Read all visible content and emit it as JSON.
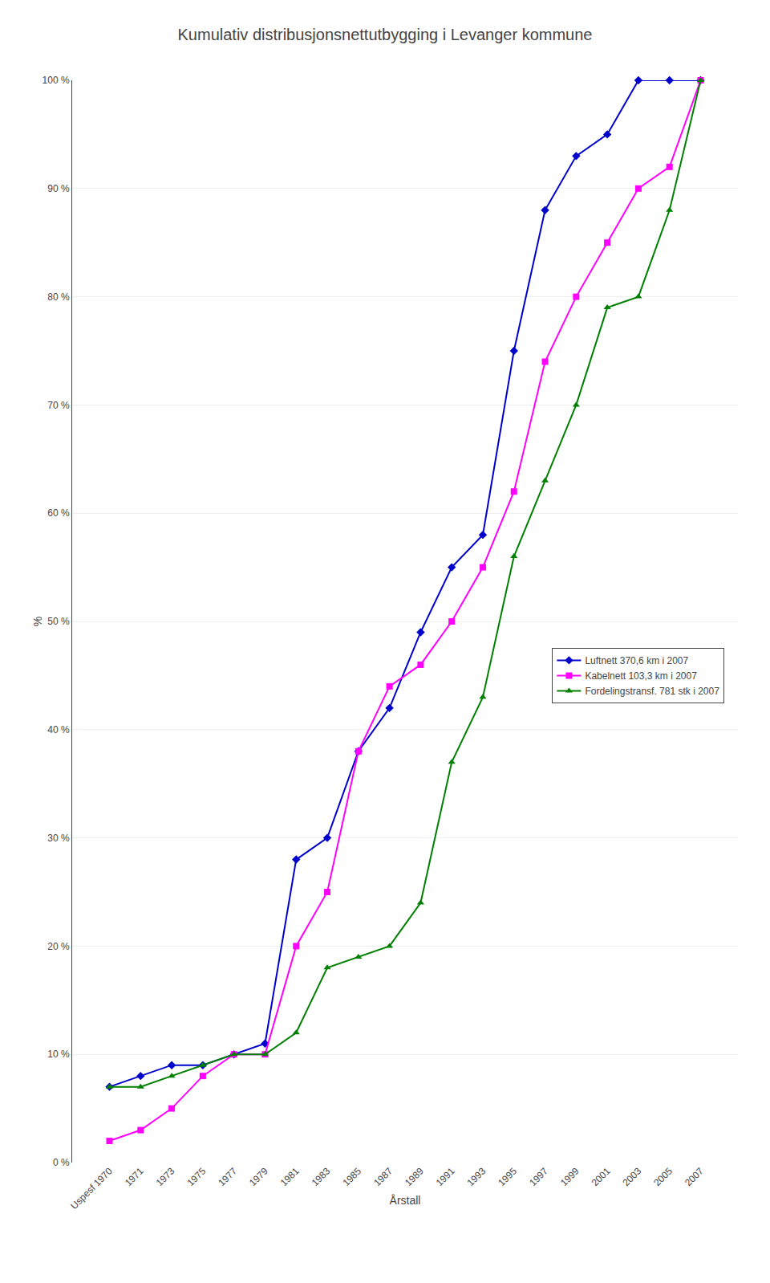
{
  "chart_data": {
    "type": "line",
    "title": "Kumulativ distribusjonsnettutbygging i Levanger kommune",
    "x_label": "Årstall",
    "y_label": "%",
    "categories": [
      "Uspesf 1970",
      "1971",
      "1973",
      "1975",
      "1977",
      "1979",
      "1981",
      "1983",
      "1985",
      "1987",
      "1989",
      "1991",
      "1993",
      "1995",
      "1997",
      "1999",
      "2001",
      "2003",
      "2005",
      "2007"
    ],
    "series": [
      {
        "name": "Luftnett 370,6 km i 2007",
        "color": "#0000cd",
        "marker": "diamond",
        "values": [
          7,
          8,
          9,
          9,
          10,
          11,
          28,
          30,
          38,
          42,
          49,
          55,
          58,
          75,
          88,
          93,
          95,
          100,
          100,
          100
        ]
      },
      {
        "name": "Kabelnett 103,3 km i 2007",
        "color": "#ff00ff",
        "marker": "square",
        "values": [
          2,
          3,
          5,
          8,
          10,
          10,
          20,
          25,
          38,
          44,
          46,
          50,
          55,
          62,
          74,
          80,
          85,
          90,
          92,
          100
        ]
      },
      {
        "name": "Fordelingstransf. 781 stk i 2007",
        "color": "#008000",
        "marker": "triangle-up",
        "values": [
          7,
          7,
          8,
          9,
          10,
          10,
          12,
          18,
          19,
          20,
          24,
          37,
          43,
          56,
          63,
          70,
          79,
          80,
          88,
          100
        ]
      }
    ],
    "ylim": [
      0,
      100
    ],
    "yticks": [
      {
        "value": 0,
        "label": "0 %"
      },
      {
        "value": 10,
        "label": "10 %"
      },
      {
        "value": 20,
        "label": "20 %"
      },
      {
        "value": 30,
        "label": "30 %"
      },
      {
        "value": 40,
        "label": "40 %"
      },
      {
        "value": 50,
        "label": "50 %"
      },
      {
        "value": 60,
        "label": "60 %"
      },
      {
        "value": 70,
        "label": "70 %"
      },
      {
        "value": 80,
        "label": "80 %"
      },
      {
        "value": 90,
        "label": "90 %"
      },
      {
        "value": 100,
        "label": "100 %"
      }
    ],
    "grid": true,
    "legend": "center right"
  }
}
